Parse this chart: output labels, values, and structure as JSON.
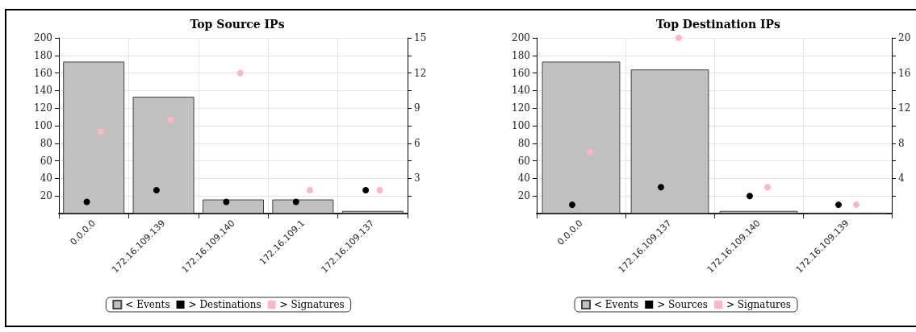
{
  "chart_data": [
    {
      "type": "bar",
      "title": "Top Source IPs",
      "categories": [
        "0.0.0.0",
        "172.16.109.139",
        "172.16.109.140",
        "172.16.109.1",
        "172.16.109.137"
      ],
      "series": [
        {
          "name": "< Events",
          "type": "bar",
          "color": "#c0c0c0",
          "values": [
            173,
            133,
            16,
            16,
            3
          ]
        },
        {
          "name": "> Destinations",
          "type": "scatter",
          "axis": "y2",
          "color": "#000000",
          "x": [
            "0.0.0.0",
            "172.16.109.139",
            "172.16.109.140",
            "172.16.109.1",
            "172.16.109.137"
          ],
          "values": [
            1,
            2,
            1,
            1,
            2
          ]
        },
        {
          "name": "> Signatures",
          "type": "scatter",
          "axis": "y2",
          "color": "#ffb6c1",
          "x": [
            "0.0.0.0",
            "172.16.109.139",
            "172.16.109.140",
            "172.16.109.1",
            "172.16.109.137"
          ],
          "values": [
            7,
            8,
            12,
            2,
            2
          ]
        }
      ],
      "ylim": [
        0,
        200
      ],
      "yticks": [
        20,
        40,
        60,
        80,
        100,
        120,
        140,
        160,
        180,
        200
      ],
      "y2lim": [
        0,
        15
      ],
      "y2ticks": [
        {
          "value": 1.5,
          "label": null
        },
        3,
        {
          "value": 4.5,
          "label": null
        },
        6,
        {
          "value": 7.5,
          "label": null
        },
        9,
        {
          "value": 10.5,
          "label": null
        },
        12,
        {
          "value": 13.5,
          "label": null
        },
        15
      ],
      "grid": true,
      "legend": "bottom",
      "marker": "circle"
    },
    {
      "type": "bar",
      "title": "Top Destination IPs",
      "categories": [
        "0.0.0.0",
        "172.16.109.137",
        "172.16.109.140",
        "172.16.109.139"
      ],
      "series": [
        {
          "name": "< Events",
          "type": "bar",
          "color": "#c0c0c0",
          "values": [
            173,
            164,
            3,
            1
          ]
        },
        {
          "name": "> Sources",
          "type": "scatter",
          "axis": "y2",
          "color": "#000000",
          "x": [
            "0.0.0.0",
            "172.16.109.137",
            "172.16.109.140",
            "172.16.109.139"
          ],
          "values": [
            1,
            3,
            2,
            1
          ]
        },
        {
          "name": "> Signatures",
          "type": "scatter",
          "axis": "y2",
          "color": "#ffb6c1",
          "x": [
            "0.0.0.0",
            "172.16.109.137",
            "172.16.109.140",
            "172.16.109.139"
          ],
          "values": [
            7,
            20,
            3,
            1
          ]
        }
      ],
      "ylim": [
        0,
        200
      ],
      "yticks": [
        20,
        40,
        60,
        80,
        100,
        120,
        140,
        160,
        180,
        200
      ],
      "y2lim": [
        0,
        20
      ],
      "y2ticks": [
        {
          "value": 2,
          "label": null
        },
        4,
        {
          "value": 6,
          "label": null
        },
        8,
        {
          "value": 10,
          "label": null
        },
        12,
        {
          "value": 14,
          "label": null
        },
        16,
        {
          "value": 18,
          "label": null
        },
        20
      ],
      "grid": true,
      "legend": "bottom",
      "marker": "circle"
    }
  ]
}
